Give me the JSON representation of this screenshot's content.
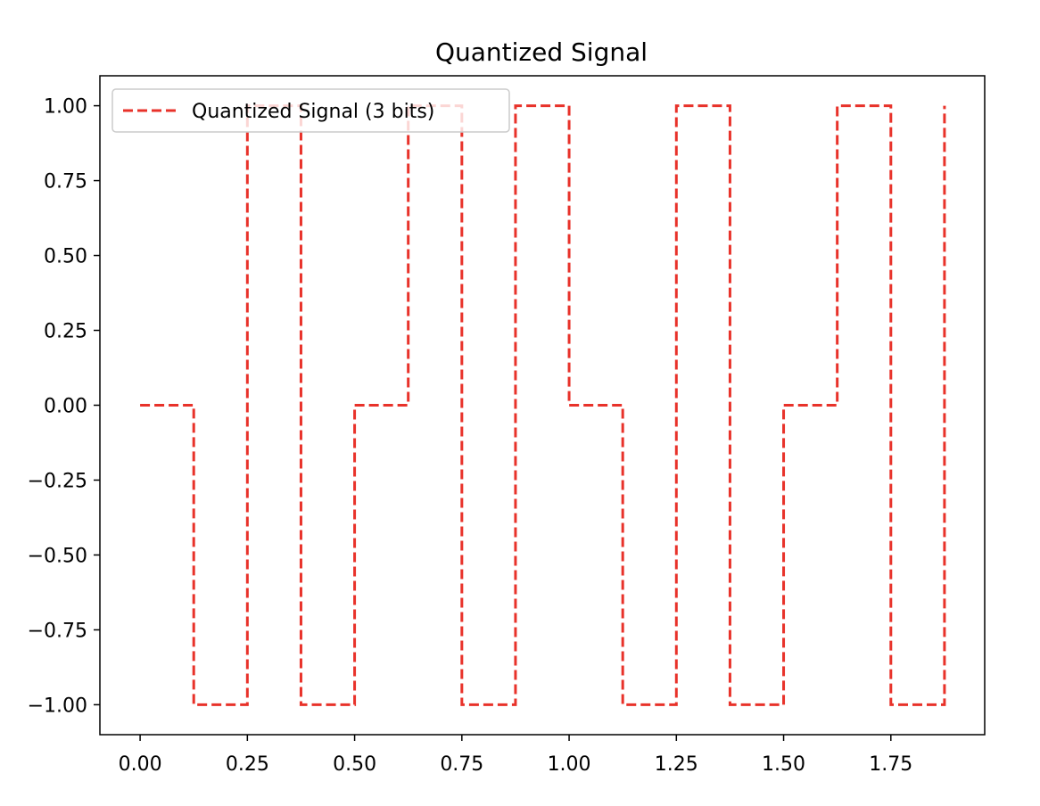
{
  "chart_data": {
    "type": "line",
    "title": "Quantized Signal",
    "xlabel": "",
    "ylabel": "",
    "xlim": [
      -0.09375,
      1.96875
    ],
    "ylim": [
      -1.1,
      1.1
    ],
    "x_ticks": [
      0.0,
      0.25,
      0.5,
      0.75,
      1.0,
      1.25,
      1.5,
      1.75
    ],
    "x_tick_labels": [
      "0.00",
      "0.25",
      "0.50",
      "0.75",
      "1.00",
      "1.25",
      "1.50",
      "1.75"
    ],
    "y_ticks": [
      1.0,
      0.75,
      0.5,
      0.25,
      0.0,
      -0.25,
      -0.5,
      -0.75,
      -1.0
    ],
    "y_tick_labels": [
      "1.00",
      "0.75",
      "0.50",
      "0.25",
      "0.00",
      "−0.25",
      "−0.50",
      "−0.75",
      "−1.00"
    ],
    "grid": false,
    "legend_position": "upper-left",
    "series": [
      {
        "name": "Quantized Signal (3 bits)",
        "color": "#e8322a",
        "line_style": "dashed",
        "step": "post",
        "x": [
          0.0,
          0.125,
          0.25,
          0.375,
          0.5,
          0.625,
          0.75,
          0.875,
          1.0,
          1.125,
          1.25,
          1.375,
          1.5,
          1.625,
          1.75,
          1.875
        ],
        "y": [
          0,
          -1,
          1,
          -1,
          0,
          1,
          -1,
          1,
          0,
          -1,
          1,
          -1,
          0,
          1,
          -1,
          1
        ]
      }
    ]
  }
}
